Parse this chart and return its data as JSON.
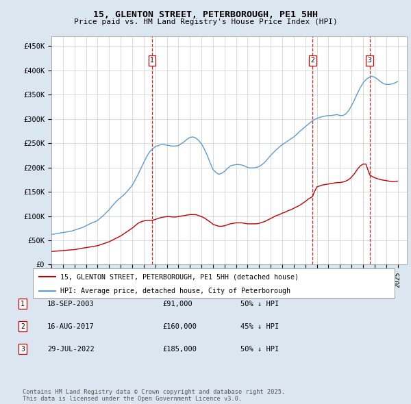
{
  "title": "15, GLENTON STREET, PETERBOROUGH, PE1 5HH",
  "subtitle": "Price paid vs. HM Land Registry's House Price Index (HPI)",
  "ylabel_ticks": [
    "£0",
    "£50K",
    "£100K",
    "£150K",
    "£200K",
    "£250K",
    "£300K",
    "£350K",
    "£400K",
    "£450K"
  ],
  "ytick_values": [
    0,
    50000,
    100000,
    150000,
    200000,
    250000,
    300000,
    350000,
    400000,
    450000
  ],
  "ylim": [
    0,
    470000
  ],
  "xlim_start": 1995.0,
  "xlim_end": 2025.8,
  "hpi_color": "#5b9bd5",
  "price_color": "#c00000",
  "bg_color": "#dce6f1",
  "plot_bg": "#ffffff",
  "grid_color": "#cccccc",
  "transactions": [
    {
      "num": 1,
      "date": "18-SEP-2003",
      "price": 91000,
      "pct": "50%",
      "direction": "↓",
      "x_year": 2003.72
    },
    {
      "num": 2,
      "date": "16-AUG-2017",
      "price": 160000,
      "pct": "45%",
      "direction": "↓",
      "x_year": 2017.62
    },
    {
      "num": 3,
      "date": "29-JUL-2022",
      "price": 185000,
      "pct": "50%",
      "direction": "↓",
      "x_year": 2022.58
    }
  ],
  "legend_line1": "15, GLENTON STREET, PETERBOROUGH, PE1 5HH (detached house)",
  "legend_line2": "HPI: Average price, detached house, City of Peterborough",
  "footer": "Contains HM Land Registry data © Crown copyright and database right 2025.\nThis data is licensed under the Open Government Licence v3.0.",
  "hpi_data_x": [
    1995.0,
    1995.25,
    1995.5,
    1995.75,
    1996.0,
    1996.25,
    1996.5,
    1996.75,
    1997.0,
    1997.25,
    1997.5,
    1997.75,
    1998.0,
    1998.25,
    1998.5,
    1998.75,
    1999.0,
    1999.25,
    1999.5,
    1999.75,
    2000.0,
    2000.25,
    2000.5,
    2000.75,
    2001.0,
    2001.25,
    2001.5,
    2001.75,
    2002.0,
    2002.25,
    2002.5,
    2002.75,
    2003.0,
    2003.25,
    2003.5,
    2003.75,
    2004.0,
    2004.25,
    2004.5,
    2004.75,
    2005.0,
    2005.25,
    2005.5,
    2005.75,
    2006.0,
    2006.25,
    2006.5,
    2006.75,
    2007.0,
    2007.25,
    2007.5,
    2007.75,
    2008.0,
    2008.25,
    2008.5,
    2008.75,
    2009.0,
    2009.25,
    2009.5,
    2009.75,
    2010.0,
    2010.25,
    2010.5,
    2010.75,
    2011.0,
    2011.25,
    2011.5,
    2011.75,
    2012.0,
    2012.25,
    2012.5,
    2012.75,
    2013.0,
    2013.25,
    2013.5,
    2013.75,
    2014.0,
    2014.25,
    2014.5,
    2014.75,
    2015.0,
    2015.25,
    2015.5,
    2015.75,
    2016.0,
    2016.25,
    2016.5,
    2016.75,
    2017.0,
    2017.25,
    2017.5,
    2017.75,
    2018.0,
    2018.25,
    2018.5,
    2018.75,
    2019.0,
    2019.25,
    2019.5,
    2019.75,
    2020.0,
    2020.25,
    2020.5,
    2020.75,
    2021.0,
    2021.25,
    2021.5,
    2021.75,
    2022.0,
    2022.25,
    2022.5,
    2022.75,
    2023.0,
    2023.25,
    2023.5,
    2023.75,
    2024.0,
    2024.25,
    2024.5,
    2024.75,
    2025.0
  ],
  "hpi_data_y": [
    62000,
    63000,
    64000,
    65000,
    66000,
    67000,
    68000,
    69000,
    71000,
    73000,
    75000,
    77000,
    80000,
    83000,
    86000,
    88000,
    91000,
    96000,
    101000,
    107000,
    113000,
    120000,
    127000,
    133000,
    138000,
    143000,
    149000,
    156000,
    163000,
    174000,
    185000,
    198000,
    210000,
    222000,
    232000,
    238000,
    243000,
    245000,
    247000,
    247000,
    246000,
    245000,
    244000,
    244000,
    245000,
    249000,
    253000,
    258000,
    262000,
    263000,
    261000,
    256000,
    249000,
    238000,
    225000,
    210000,
    196000,
    190000,
    186000,
    188000,
    192000,
    198000,
    203000,
    205000,
    206000,
    206000,
    205000,
    203000,
    200000,
    199000,
    199000,
    200000,
    202000,
    206000,
    211000,
    218000,
    225000,
    231000,
    237000,
    242000,
    247000,
    251000,
    255000,
    259000,
    263000,
    268000,
    274000,
    279000,
    284000,
    289000,
    294000,
    298000,
    301000,
    303000,
    305000,
    306000,
    307000,
    307000,
    308000,
    309000,
    307000,
    307000,
    310000,
    317000,
    327000,
    339000,
    352000,
    364000,
    374000,
    381000,
    385000,
    388000,
    386000,
    382000,
    377000,
    373000,
    371000,
    371000,
    372000,
    374000,
    377000
  ],
  "price_data_x": [
    1995.0,
    1995.25,
    1995.5,
    1995.75,
    1996.0,
    1996.25,
    1996.5,
    1996.75,
    1997.0,
    1997.25,
    1997.5,
    1997.75,
    1998.0,
    1998.25,
    1998.5,
    1998.75,
    1999.0,
    1999.25,
    1999.5,
    1999.75,
    2000.0,
    2000.25,
    2000.5,
    2000.75,
    2001.0,
    2001.25,
    2001.5,
    2001.75,
    2002.0,
    2002.25,
    2002.5,
    2002.75,
    2003.0,
    2003.25,
    2003.5,
    2003.72,
    2004.0,
    2004.25,
    2004.5,
    2004.75,
    2005.0,
    2005.25,
    2005.5,
    2005.75,
    2006.0,
    2006.25,
    2006.5,
    2006.75,
    2007.0,
    2007.25,
    2007.5,
    2007.75,
    2008.0,
    2008.25,
    2008.5,
    2008.75,
    2009.0,
    2009.25,
    2009.5,
    2009.75,
    2010.0,
    2010.25,
    2010.5,
    2010.75,
    2011.0,
    2011.25,
    2011.5,
    2011.75,
    2012.0,
    2012.25,
    2012.5,
    2012.75,
    2013.0,
    2013.25,
    2013.5,
    2013.75,
    2014.0,
    2014.25,
    2014.5,
    2014.75,
    2015.0,
    2015.25,
    2015.5,
    2015.75,
    2016.0,
    2016.25,
    2016.5,
    2016.75,
    2017.0,
    2017.25,
    2017.62,
    2017.75,
    2018.0,
    2018.25,
    2018.5,
    2018.75,
    2019.0,
    2019.25,
    2019.5,
    2019.75,
    2020.0,
    2020.25,
    2020.5,
    2020.75,
    2021.0,
    2021.25,
    2021.5,
    2021.75,
    2022.0,
    2022.25,
    2022.58,
    2022.75,
    2023.0,
    2023.25,
    2023.5,
    2023.75,
    2024.0,
    2024.25,
    2024.5,
    2024.75,
    2025.0
  ],
  "price_data_y": [
    27000,
    27500,
    28000,
    28500,
    29000,
    29500,
    30000,
    30500,
    31000,
    32000,
    33000,
    34000,
    35000,
    36000,
    37000,
    38000,
    39000,
    41000,
    43000,
    45000,
    47000,
    50000,
    53000,
    56000,
    59000,
    63000,
    67000,
    71000,
    75000,
    80000,
    85000,
    88000,
    90000,
    91000,
    91000,
    91000,
    93000,
    95000,
    97000,
    98000,
    99000,
    99000,
    98000,
    98000,
    99000,
    100000,
    101000,
    102000,
    103000,
    103000,
    103000,
    101000,
    99000,
    96000,
    92000,
    88000,
    83000,
    81000,
    79000,
    79000,
    80000,
    82000,
    84000,
    85000,
    86000,
    86000,
    86000,
    85000,
    84000,
    84000,
    84000,
    84000,
    85000,
    87000,
    89000,
    92000,
    95000,
    98000,
    101000,
    103000,
    106000,
    108000,
    111000,
    113000,
    116000,
    119000,
    122000,
    126000,
    130000,
    135000,
    140000,
    148000,
    160000,
    162000,
    164000,
    165000,
    166000,
    167000,
    168000,
    169000,
    169000,
    170000,
    172000,
    175000,
    180000,
    187000,
    196000,
    203000,
    207000,
    207000,
    185000,
    182000,
    179000,
    177000,
    175000,
    174000,
    173000,
    172000,
    171000,
    171000,
    172000
  ]
}
